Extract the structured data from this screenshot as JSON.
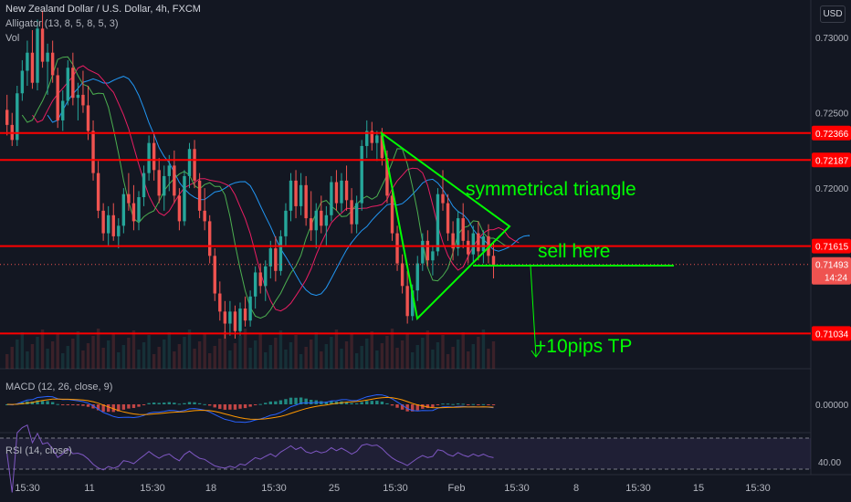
{
  "legend": {
    "title": "New Zealand Dollar / U.S. Dollar, 4h, FXCM",
    "alligator": "Alligator (13, 8, 5, 8, 5, 3)",
    "vol": "Vol",
    "macd": "MACD (12, 26, close, 9)",
    "rsi": "RSI (14, close)"
  },
  "currency_button": "USD",
  "colors": {
    "background": "#131722",
    "level_line": "#ff0000",
    "drawing": "#00ff00",
    "bull": "#26a69a",
    "bear": "#ef5350",
    "alligator_jaw": "#2196f3",
    "alligator_teeth": "#e91e63",
    "alligator_lips": "#4caf50",
    "macd_line": "#2962ff",
    "signal_line": "#ff9800",
    "rsi_line": "#7e57c2"
  },
  "chart_data": {
    "type": "candlestick",
    "title": "New Zealand Dollar / U.S. Dollar, 4h, FXCM",
    "price_axis": {
      "ticks": [
        "0.73000",
        "0.72500",
        "0.72000"
      ],
      "range": [
        0.708,
        0.7325
      ]
    },
    "price_labels": [
      {
        "text": "0.72366",
        "value": 0.72366
      },
      {
        "text": "0.72187",
        "value": 0.72187
      },
      {
        "text": "0.71615",
        "value": 0.71615
      },
      {
        "text": "0.71034",
        "value": 0.71034
      }
    ],
    "current_price": {
      "text": "0.71493",
      "value": 0.71493,
      "countdown": "14:24"
    },
    "levels": [
      0.72366,
      0.72187,
      0.71615,
      0.71034
    ],
    "time_axis": [
      "15:30",
      "11",
      "15:30",
      "18",
      "15:30",
      "25",
      "15:30",
      "Feb",
      "15:30",
      "8",
      "15:30",
      "15",
      "15:30"
    ],
    "annotations": {
      "triangle": "symmetrical triangle",
      "entry": "sell here",
      "target": "+10pips TP"
    },
    "macd": {
      "tick": "0.00000"
    },
    "rsi": {
      "tick": "40.00"
    },
    "candles": [
      [
        0.7252,
        0.7262,
        0.7235,
        0.7242
      ],
      [
        0.7242,
        0.725,
        0.7228,
        0.7232
      ],
      [
        0.7232,
        0.7268,
        0.7228,
        0.7263
      ],
      [
        0.7263,
        0.7285,
        0.7258,
        0.7278
      ],
      [
        0.7278,
        0.7298,
        0.7268,
        0.729
      ],
      [
        0.729,
        0.7305,
        0.7266,
        0.727
      ],
      [
        0.727,
        0.7312,
        0.7265,
        0.7306
      ],
      [
        0.7306,
        0.7318,
        0.728,
        0.7284
      ],
      [
        0.7284,
        0.7296,
        0.7262,
        0.729
      ],
      [
        0.729,
        0.7298,
        0.727,
        0.7275
      ],
      [
        0.7275,
        0.728,
        0.724,
        0.7245
      ],
      [
        0.7245,
        0.7265,
        0.7238,
        0.7258
      ],
      [
        0.7258,
        0.7285,
        0.7255,
        0.728
      ],
      [
        0.728,
        0.729,
        0.7255,
        0.726
      ],
      [
        0.726,
        0.727,
        0.7245,
        0.7262
      ],
      [
        0.7262,
        0.7278,
        0.725,
        0.7255
      ],
      [
        0.7255,
        0.7268,
        0.7232,
        0.7238
      ],
      [
        0.7238,
        0.7245,
        0.7205,
        0.721
      ],
      [
        0.721,
        0.7218,
        0.718,
        0.7185
      ],
      [
        0.7185,
        0.719,
        0.7165,
        0.717
      ],
      [
        0.717,
        0.7188,
        0.7162,
        0.7182
      ],
      [
        0.7182,
        0.719,
        0.7165,
        0.7168
      ],
      [
        0.7168,
        0.718,
        0.716,
        0.7175
      ],
      [
        0.7175,
        0.72,
        0.717,
        0.7196
      ],
      [
        0.7196,
        0.721,
        0.7185,
        0.719
      ],
      [
        0.719,
        0.7202,
        0.7172,
        0.7178
      ],
      [
        0.7178,
        0.7198,
        0.7172,
        0.7194
      ],
      [
        0.7194,
        0.7215,
        0.7188,
        0.721
      ],
      [
        0.721,
        0.7235,
        0.7205,
        0.723
      ],
      [
        0.723,
        0.7236,
        0.7205,
        0.7212
      ],
      [
        0.7212,
        0.722,
        0.719,
        0.7195
      ],
      [
        0.7195,
        0.7215,
        0.7185,
        0.7208
      ],
      [
        0.7208,
        0.7222,
        0.7198,
        0.7215
      ],
      [
        0.7215,
        0.7225,
        0.719,
        0.7195
      ],
      [
        0.7195,
        0.72,
        0.7172,
        0.7178
      ],
      [
        0.7178,
        0.7212,
        0.7175,
        0.7208
      ],
      [
        0.7208,
        0.723,
        0.72,
        0.7226
      ],
      [
        0.7226,
        0.7232,
        0.72,
        0.7205
      ],
      [
        0.7205,
        0.721,
        0.718,
        0.7185
      ],
      [
        0.7185,
        0.72,
        0.7172,
        0.7178
      ],
      [
        0.7178,
        0.7182,
        0.715,
        0.7155
      ],
      [
        0.7155,
        0.716,
        0.7125,
        0.713
      ],
      [
        0.713,
        0.7138,
        0.7112,
        0.7118
      ],
      [
        0.7118,
        0.7125,
        0.71,
        0.711
      ],
      [
        0.711,
        0.7125,
        0.7102,
        0.7118
      ],
      [
        0.7118,
        0.7122,
        0.71,
        0.7105
      ],
      [
        0.7105,
        0.7124,
        0.7102,
        0.712
      ],
      [
        0.712,
        0.7128,
        0.7108,
        0.7112
      ],
      [
        0.7112,
        0.7132,
        0.7108,
        0.7128
      ],
      [
        0.7128,
        0.7148,
        0.712,
        0.7144
      ],
      [
        0.7144,
        0.715,
        0.713,
        0.7135
      ],
      [
        0.7135,
        0.7152,
        0.7125,
        0.7148
      ],
      [
        0.7148,
        0.7165,
        0.714,
        0.716
      ],
      [
        0.716,
        0.7168,
        0.7138,
        0.7145
      ],
      [
        0.7145,
        0.7172,
        0.7142,
        0.7168
      ],
      [
        0.7168,
        0.719,
        0.7162,
        0.7185
      ],
      [
        0.7185,
        0.721,
        0.7178,
        0.7205
      ],
      [
        0.7205,
        0.7212,
        0.718,
        0.7188
      ],
      [
        0.7188,
        0.721,
        0.7182,
        0.7202
      ],
      [
        0.7202,
        0.7208,
        0.7175,
        0.718
      ],
      [
        0.718,
        0.7198,
        0.7165,
        0.7172
      ],
      [
        0.7172,
        0.719,
        0.716,
        0.7185
      ],
      [
        0.7185,
        0.7195,
        0.717,
        0.7175
      ],
      [
        0.7175,
        0.7188,
        0.7162,
        0.7182
      ],
      [
        0.7182,
        0.7208,
        0.7178,
        0.7204
      ],
      [
        0.7204,
        0.7212,
        0.7185,
        0.719
      ],
      [
        0.719,
        0.721,
        0.7184,
        0.7205
      ],
      [
        0.7205,
        0.7215,
        0.7185,
        0.7192
      ],
      [
        0.7192,
        0.72,
        0.717,
        0.7176
      ],
      [
        0.7176,
        0.7195,
        0.717,
        0.719
      ],
      [
        0.719,
        0.7232,
        0.7185,
        0.7228
      ],
      [
        0.7228,
        0.7245,
        0.722,
        0.7238
      ],
      [
        0.7238,
        0.7244,
        0.7225,
        0.723
      ],
      [
        0.723,
        0.7238,
        0.7218,
        0.7235
      ],
      [
        0.7235,
        0.724,
        0.7215,
        0.722
      ],
      [
        0.722,
        0.7225,
        0.719,
        0.7195
      ],
      [
        0.7195,
        0.72,
        0.7165,
        0.717
      ],
      [
        0.717,
        0.7175,
        0.7145,
        0.715
      ],
      [
        0.715,
        0.7156,
        0.713,
        0.7135
      ],
      [
        0.7135,
        0.7145,
        0.711,
        0.7115
      ],
      [
        0.7115,
        0.7136,
        0.7112,
        0.7132
      ],
      [
        0.7132,
        0.7155,
        0.7125,
        0.715
      ],
      [
        0.715,
        0.717,
        0.7145,
        0.7165
      ],
      [
        0.7165,
        0.7172,
        0.7148,
        0.7152
      ],
      [
        0.7152,
        0.7162,
        0.7142,
        0.7158
      ],
      [
        0.7158,
        0.72,
        0.7155,
        0.7196
      ],
      [
        0.7196,
        0.7212,
        0.7185,
        0.719
      ],
      [
        0.719,
        0.7196,
        0.7165,
        0.717
      ],
      [
        0.717,
        0.7178,
        0.7152,
        0.716
      ],
      [
        0.716,
        0.7185,
        0.7155,
        0.718
      ],
      [
        0.718,
        0.719,
        0.716,
        0.7165
      ],
      [
        0.7165,
        0.7172,
        0.715,
        0.7156
      ],
      [
        0.7156,
        0.7175,
        0.715,
        0.717
      ],
      [
        0.717,
        0.7178,
        0.7152,
        0.7158
      ],
      [
        0.7158,
        0.7172,
        0.715,
        0.7168
      ],
      [
        0.7168,
        0.7176,
        0.715,
        0.7155
      ],
      [
        0.7155,
        0.7165,
        0.714,
        0.7149
      ]
    ]
  }
}
